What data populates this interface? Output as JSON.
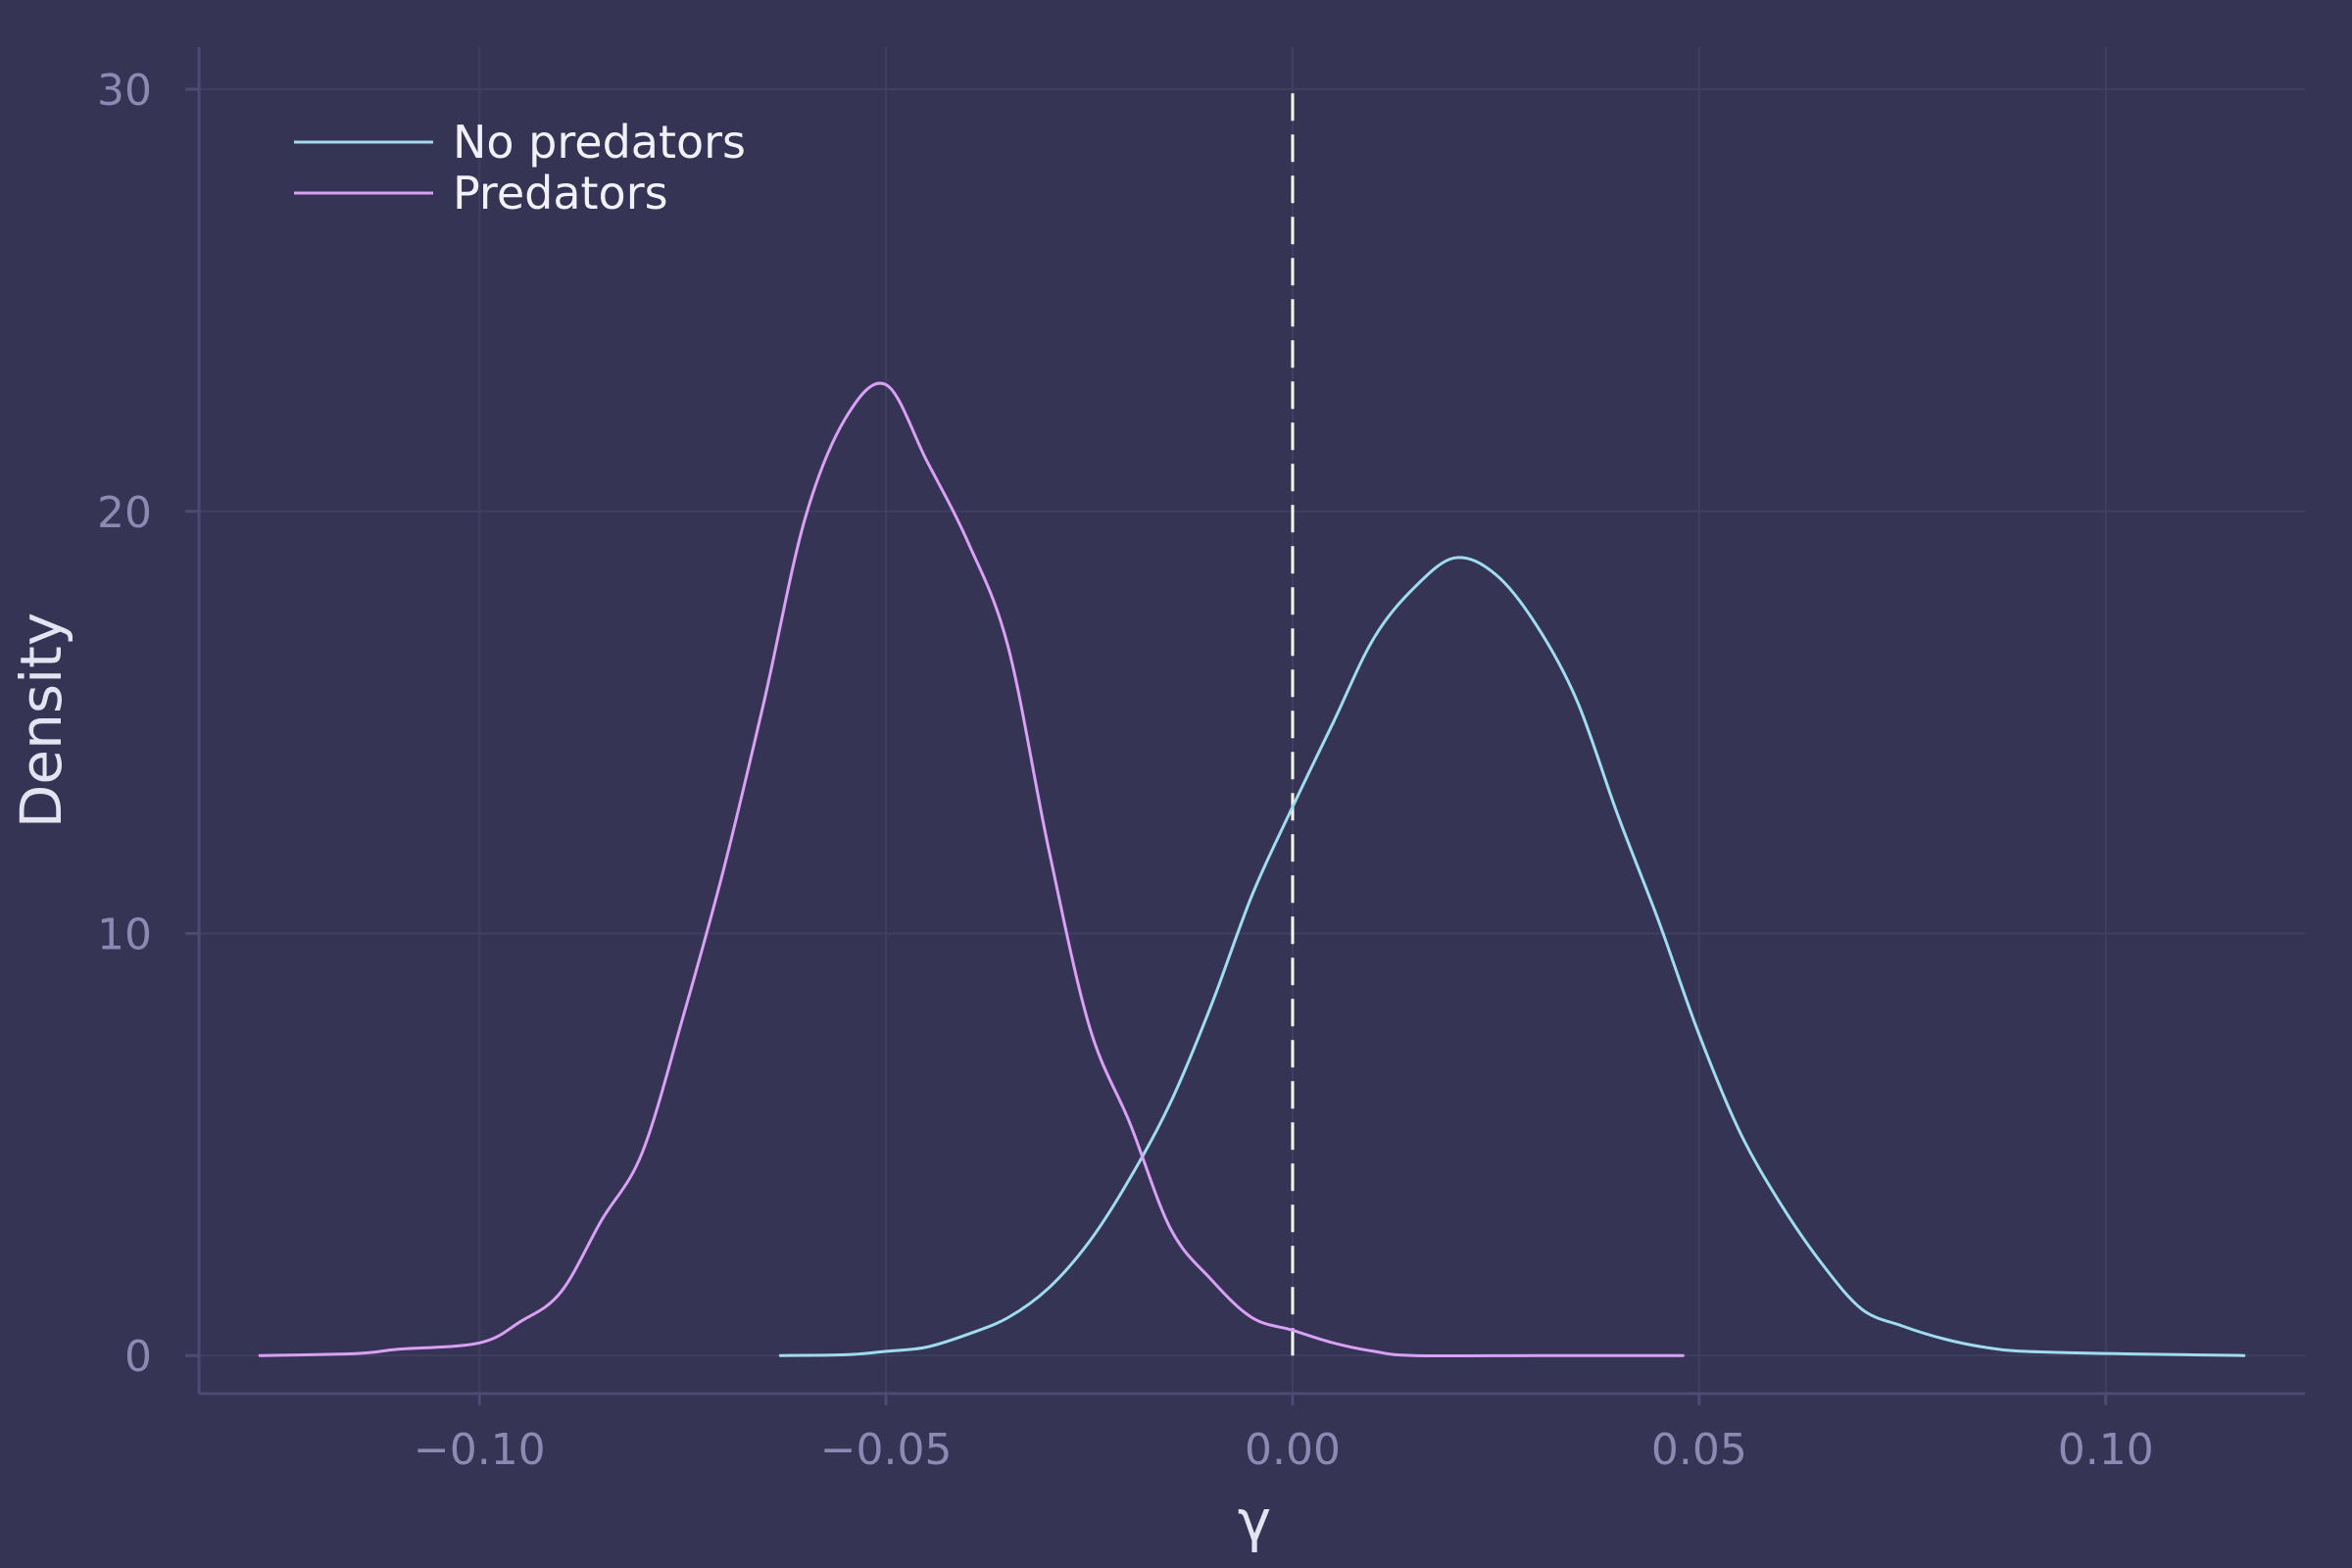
{
  "chart_data": {
    "type": "line",
    "title": "",
    "xlabel": "γ",
    "ylabel": "Density",
    "xlim": [
      -0.1345,
      0.1245
    ],
    "ylim": [
      -0.9,
      31
    ],
    "x_ticks": [
      -0.1,
      -0.05,
      0.0,
      0.05,
      0.1
    ],
    "x_tick_labels": [
      "−0.10",
      "−0.05",
      "0.00",
      "0.05",
      "0.10"
    ],
    "y_ticks": [
      0,
      10,
      20,
      30
    ],
    "y_tick_labels": [
      "0",
      "10",
      "20",
      "30"
    ],
    "grid": true,
    "legend_position": "top-left",
    "reference_line": {
      "x": 0.0,
      "y_range": [
        0,
        30
      ],
      "style": "dashed",
      "color": "#ffffff"
    },
    "colors": {
      "background": "#353455",
      "no_predators": "#9fdcf0",
      "predators": "#d9a0f5"
    },
    "series": [
      {
        "name": "No predators",
        "color": "#9fdcf0",
        "points": [
          [
            -0.063,
            0.0
          ],
          [
            -0.055,
            0.02
          ],
          [
            -0.05,
            0.1
          ],
          [
            -0.045,
            0.2
          ],
          [
            -0.04,
            0.5
          ],
          [
            -0.035,
            0.9
          ],
          [
            -0.03,
            1.6
          ],
          [
            -0.025,
            2.7
          ],
          [
            -0.02,
            4.2
          ],
          [
            -0.015,
            6.0
          ],
          [
            -0.01,
            8.3
          ],
          [
            -0.005,
            10.9
          ],
          [
            0.0,
            13.0
          ],
          [
            0.005,
            15.0
          ],
          [
            0.01,
            17.0
          ],
          [
            0.015,
            18.2
          ],
          [
            0.02,
            18.9
          ],
          [
            0.025,
            18.5
          ],
          [
            0.03,
            17.3
          ],
          [
            0.035,
            15.5
          ],
          [
            0.04,
            12.8
          ],
          [
            0.045,
            10.3
          ],
          [
            0.05,
            7.6
          ],
          [
            0.055,
            5.3
          ],
          [
            0.06,
            3.6
          ],
          [
            0.065,
            2.2
          ],
          [
            0.07,
            1.1
          ],
          [
            0.075,
            0.7
          ],
          [
            0.08,
            0.4
          ],
          [
            0.085,
            0.2
          ],
          [
            0.09,
            0.1
          ],
          [
            0.1,
            0.05
          ],
          [
            0.11,
            0.02
          ],
          [
            0.117,
            0.0
          ]
        ]
      },
      {
        "name": "Predators",
        "color": "#d9a0f5",
        "points": [
          [
            -0.127,
            0.0
          ],
          [
            -0.115,
            0.05
          ],
          [
            -0.11,
            0.15
          ],
          [
            -0.1,
            0.3
          ],
          [
            -0.095,
            0.8
          ],
          [
            -0.09,
            1.5
          ],
          [
            -0.085,
            3.2
          ],
          [
            -0.08,
            4.8
          ],
          [
            -0.075,
            8.0
          ],
          [
            -0.07,
            11.5
          ],
          [
            -0.065,
            15.5
          ],
          [
            -0.06,
            19.8
          ],
          [
            -0.055,
            22.2
          ],
          [
            -0.05,
            23.0
          ],
          [
            -0.045,
            21.2
          ],
          [
            -0.04,
            19.3
          ],
          [
            -0.035,
            16.8
          ],
          [
            -0.03,
            12.0
          ],
          [
            -0.025,
            7.8
          ],
          [
            -0.02,
            5.5
          ],
          [
            -0.015,
            3.0
          ],
          [
            -0.01,
            1.8
          ],
          [
            -0.005,
            0.9
          ],
          [
            0.0,
            0.6
          ],
          [
            0.005,
            0.3
          ],
          [
            0.01,
            0.1
          ],
          [
            0.015,
            0.0
          ],
          [
            0.03,
            0.0
          ],
          [
            0.048,
            0.0
          ]
        ]
      }
    ]
  }
}
